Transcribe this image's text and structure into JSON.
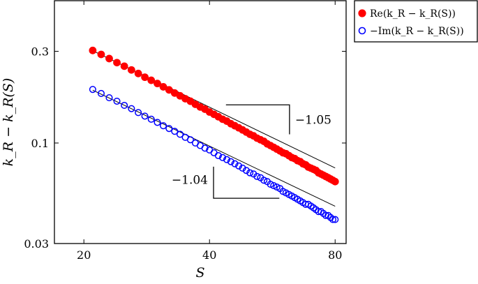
{
  "chart_data": {
    "type": "scatter",
    "x_scale": "log",
    "y_scale": "log",
    "xlim": [
      17,
      85
    ],
    "ylim": [
      0.03,
      0.55
    ],
    "grid": false,
    "legend_placement": "outside-right-top",
    "xlabel": "S",
    "ylabel": "k_R − k_R(S)",
    "x_ticks": [
      {
        "value": 20,
        "label": "20"
      },
      {
        "value": 40,
        "label": "40"
      },
      {
        "value": 80,
        "label": "80"
      }
    ],
    "y_ticks": [
      {
        "value": 0.03,
        "label": "0.03"
      },
      {
        "value": 0.1,
        "label": "0.1"
      },
      {
        "value": 0.3,
        "label": "0.3"
      }
    ],
    "x_start": 21,
    "x_end": 80,
    "x_step": 1,
    "series": [
      {
        "name": "Re(k_R − k_R(S))",
        "marker": "filled-circle",
        "color": "#ff0000",
        "fit_prefactor": 7.39,
        "fit_exponent": -1.05,
        "values": [
          0.303,
          0.289,
          0.275,
          0.262,
          0.251,
          0.24,
          0.23,
          0.22,
          0.212,
          0.204,
          0.196,
          0.189,
          0.182,
          0.176,
          0.17,
          0.165,
          0.159,
          0.154,
          0.15,
          0.145,
          0.141,
          0.137,
          0.133,
          0.13,
          0.126,
          0.123,
          0.12,
          0.117,
          0.114,
          0.111,
          0.109,
          0.106,
          0.104,
          0.102,
          0.099,
          0.097,
          0.095,
          0.093,
          0.091,
          0.089,
          0.088,
          0.086,
          0.084,
          0.083,
          0.081,
          0.08,
          0.078,
          0.077,
          0.075,
          0.074,
          0.073,
          0.072,
          0.07,
          0.069,
          0.068,
          0.067,
          0.066,
          0.065,
          0.064,
          0.063
        ]
      },
      {
        "name": "−Im(k_R − k_R(S))",
        "marker": "open-circle",
        "color": "#0000ff",
        "fit_prefactor": 4.47,
        "fit_exponent": -1.04,
        "values": [
          0.19,
          0.181,
          0.172,
          0.165,
          0.157,
          0.151,
          0.144,
          0.138,
          0.133,
          0.128,
          0.123,
          0.119,
          0.115,
          0.111,
          0.107,
          0.104,
          0.1,
          0.097,
          0.094,
          0.092,
          0.089,
          0.086,
          0.084,
          0.082,
          0.08,
          0.078,
          0.076,
          0.074,
          0.072,
          0.07,
          0.069,
          0.067,
          0.066,
          0.064,
          0.063,
          0.061,
          0.06,
          0.059,
          0.058,
          0.056,
          0.055,
          0.054,
          0.053,
          0.052,
          0.051,
          0.05,
          0.049,
          0.048,
          0.048,
          0.047,
          0.046,
          0.045,
          0.044,
          0.044,
          0.043,
          0.042,
          0.042,
          0.041,
          0.04,
          0.04
        ]
      }
    ],
    "slope_triangles": [
      {
        "label": "−1.05",
        "series": "Re",
        "corner": "upper-right",
        "x_left": 43.8,
        "x_right": 62.2,
        "y_top": 0.158,
        "y_bottom": 0.111
      },
      {
        "label": "−1.04",
        "series": "Im",
        "corner": "lower-left",
        "x_left": 40.9,
        "x_right": 58.8,
        "y_top": 0.0753,
        "y_bottom": 0.0516
      }
    ]
  }
}
